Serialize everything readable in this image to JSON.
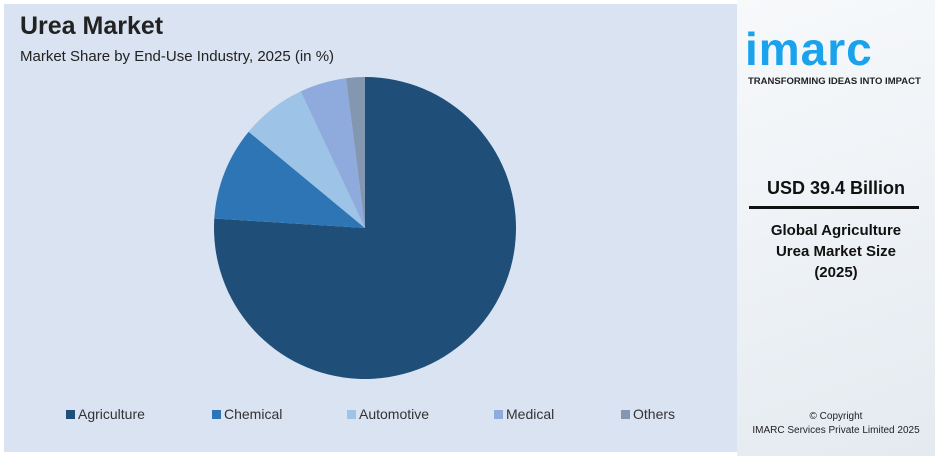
{
  "header": {
    "title": "Urea Market",
    "subtitle": "Market Share by End-Use Industry, 2025 (in %)"
  },
  "chart_data": {
    "type": "pie",
    "title": "Urea Market",
    "subtitle": "Market Share by End-Use Industry, 2025 (in %)",
    "categories": [
      "Agriculture",
      "Chemical",
      "Automotive",
      "Medical",
      "Others"
    ],
    "values": [
      76,
      10,
      7,
      5,
      2
    ],
    "colors": [
      "#1f4e79",
      "#2e75b6",
      "#9dc3e6",
      "#8faadc",
      "#8497b0"
    ],
    "start_angle": "top, clockwise",
    "legend": "bottom"
  },
  "side": {
    "logo": "imarc",
    "tagline": "TRANSFORMING IDEAS INTO IMPACT",
    "market_size": "USD 39.4 Billion",
    "desc_lines": [
      "Global Agriculture",
      "Urea Market Size",
      "(2025)"
    ],
    "copyright": "© Copyright",
    "company": "IMARC Services Private Limited 2025"
  }
}
